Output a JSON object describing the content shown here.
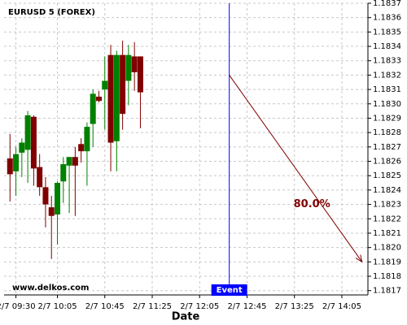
{
  "chart_data": {
    "type": "candlestick",
    "title": "EURUSD 5 (FOREX)",
    "x_label": "Date",
    "watermark": "www.delkos.com",
    "x": [
      "2/7 09:25",
      "2/7 09:30",
      "2/7 09:35",
      "2/7 09:40",
      "2/7 09:45",
      "2/7 09:50",
      "2/7 09:55",
      "2/7 10:00",
      "2/7 10:05",
      "2/7 10:10",
      "2/7 10:15",
      "2/7 10:20",
      "2/7 10:25",
      "2/7 10:30",
      "2/7 10:35",
      "2/7 10:40",
      "2/7 10:45",
      "2/7 10:50",
      "2/7 10:55",
      "2/7 11:00",
      "2/7 11:05",
      "2/7 11:10",
      "2/7 11:15"
    ],
    "open": [
      1.18262,
      1.18253,
      1.18266,
      1.18268,
      1.18291,
      1.18256,
      1.18242,
      1.18228,
      1.18223,
      1.18246,
      1.18257,
      1.18263,
      1.18272,
      1.18267,
      1.18286,
      1.18305,
      1.1831,
      1.18334,
      1.18274,
      1.18334,
      1.18316,
      1.18333,
      1.18333
    ],
    "high": [
      1.18279,
      1.1827,
      1.18276,
      1.18295,
      1.18292,
      1.18265,
      1.18249,
      1.18236,
      1.18246,
      1.18263,
      1.18263,
      1.1827,
      1.18276,
      1.18287,
      1.1831,
      1.18309,
      1.18333,
      1.18341,
      1.18337,
      1.18344,
      1.18341,
      1.18343,
      1.18333
    ],
    "low": [
      1.18232,
      1.18236,
      1.18249,
      1.18245,
      1.18243,
      1.18236,
      1.18214,
      1.18192,
      1.18202,
      1.18231,
      1.18224,
      1.18222,
      1.18259,
      1.18243,
      1.1827,
      1.18301,
      1.18282,
      1.18253,
      1.18253,
      1.18282,
      1.18299,
      1.18309,
      1.18283
    ],
    "close": [
      1.18251,
      1.18265,
      1.18273,
      1.18292,
      1.18255,
      1.18242,
      1.1823,
      1.18222,
      1.18245,
      1.18258,
      1.18263,
      1.18257,
      1.18267,
      1.18284,
      1.18307,
      1.18302,
      1.18316,
      1.18273,
      1.18334,
      1.18293,
      1.18334,
      1.18322,
      1.18308
    ],
    "up_color": "#008000",
    "down_color": "#800000",
    "xlim": [
      "2/7 09:20",
      "2/7 14:27"
    ],
    "xticks": [
      "2/7 09:30",
      "2/7 10:05",
      "2/7 10:45",
      "2/7 11:25",
      "2/7 12:05",
      "2/7 12:45",
      "2/7 13:25",
      "2/7 14:05"
    ],
    "ylim": [
      1.18167,
      1.1837
    ],
    "yticks": [
      1.1817,
      1.1818,
      1.1819,
      {
        "value": 1.182,
        "label": "1.1820"
      },
      1.1821,
      1.1822,
      1.1823,
      1.1824,
      1.1825,
      1.1826,
      1.1827,
      1.1828,
      1.1829,
      {
        "value": 1.183,
        "label": "1.1830"
      },
      1.1831,
      1.1832,
      1.1833,
      1.1834,
      1.1835,
      1.1836,
      1.1837
    ],
    "grid": true,
    "event": {
      "x": "2/7 12:30",
      "label": "Event",
      "color": "#0000ff"
    },
    "forecast": {
      "start_x": "2/7 12:30",
      "start_y": 1.1832,
      "end_x": "2/7 14:22",
      "end_y": 1.1819,
      "label": "80.0%",
      "color": "#800000"
    }
  }
}
